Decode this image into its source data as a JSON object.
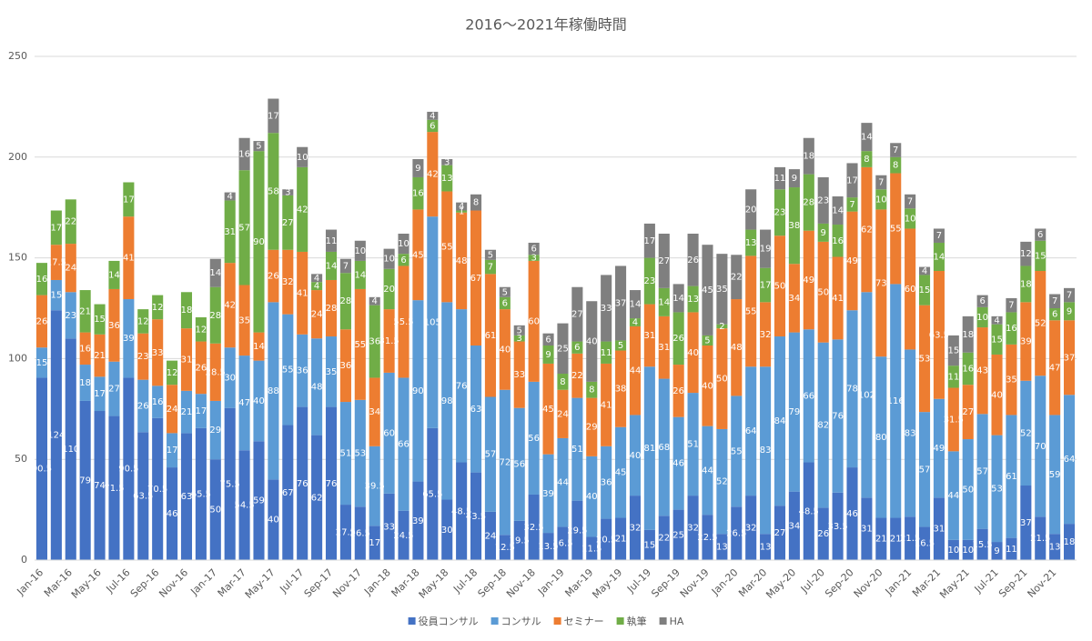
{
  "chart_data": {
    "type": "stacked-bar",
    "title": "2016～2021年稼働時間",
    "categories": [
      "Jan-16",
      null,
      "Mar-16",
      null,
      "May-16",
      null,
      "Jul-16",
      null,
      "Sep-16",
      null,
      "Nov-16",
      null,
      "Jan-17",
      null,
      "Mar-17",
      null,
      "May-17",
      null,
      "Jul-17",
      null,
      "Sep-17",
      null,
      "Nov-17",
      null,
      "Jan-18",
      null,
      "Mar-18",
      null,
      "May-18",
      null,
      "Jul-18",
      null,
      "Sep-18",
      null,
      "Nov-18",
      null,
      "Jan-19",
      null,
      "Mar-19",
      null,
      "May-19",
      null,
      "Jul-19",
      null,
      "Sep-19",
      null,
      "Nov-19",
      null,
      "Jan-20",
      null,
      "Mar-20",
      null,
      "May-20",
      null,
      "Jul-20",
      null,
      "Sep-20",
      null,
      "Nov-20",
      null,
      "Jan-21",
      null,
      "Mar-21",
      null,
      "May-21",
      null,
      "Jul-21",
      null,
      "Sep-21",
      null,
      "Nov-21",
      null
    ],
    "series": [
      {
        "name": "役員コンサル",
        "color": "#4472c4",
        "values": [
          90.5,
          124,
          110,
          79,
          74,
          71.5,
          90.5,
          63.5,
          70.5,
          46,
          63,
          65.5,
          50,
          75.5,
          54.5,
          59,
          40,
          67,
          76,
          62,
          76,
          27.5,
          26.5,
          17,
          33,
          24.5,
          39,
          65.5,
          30,
          48.5,
          43.5,
          24,
          12.5,
          19.5,
          32.5,
          13.5,
          16.5,
          29.5,
          11.5,
          20.5,
          21,
          32,
          15,
          22,
          25,
          32,
          22.5,
          13,
          26.5,
          32,
          13,
          27,
          34,
          48.5,
          26,
          33.5,
          46,
          31,
          21,
          21,
          21.5,
          16.5,
          31,
          10,
          10,
          15.5,
          9,
          11,
          37,
          21.5,
          13,
          18
        ]
      },
      {
        "name": "コンサル",
        "color": "#5b9bd5",
        "values": [
          15,
          15,
          23,
          18,
          17,
          27,
          39,
          26,
          16,
          17,
          21,
          17,
          29,
          30,
          47,
          40,
          88,
          55,
          36,
          48,
          35,
          51,
          53,
          39.5,
          60,
          66,
          90,
          105,
          98,
          76,
          63,
          57,
          72,
          56,
          56,
          39,
          44,
          51,
          40,
          36,
          45,
          40,
          81,
          68,
          46,
          51,
          44,
          52,
          55,
          64,
          83,
          84,
          79,
          66,
          82,
          76,
          78,
          102,
          80,
          116,
          83,
          57,
          49,
          44,
          50,
          57,
          53,
          61,
          52,
          70,
          59,
          64
        ]
      },
      {
        "name": "セミナー",
        "color": "#ed7d31",
        "values": [
          26,
          17.5,
          24,
          16,
          21,
          36,
          41,
          23,
          33,
          24,
          31,
          26,
          28.5,
          42,
          35,
          14,
          26,
          32,
          41,
          24,
          28,
          36,
          55,
          34,
          31.5,
          55.5,
          45,
          42,
          55,
          48,
          67,
          61,
          40,
          33,
          60,
          45,
          24,
          22,
          29,
          41,
          38,
          44,
          31,
          31,
          26,
          40,
          40,
          50,
          48,
          55,
          32,
          50,
          34,
          49,
          50,
          41,
          49,
          62,
          73,
          55,
          60,
          53,
          63.5,
          31.5,
          27,
          43,
          40,
          35,
          39,
          52,
          47,
          37
        ]
      },
      {
        "name": "執筆",
        "color": "#70ad47",
        "values": [
          16,
          17,
          22,
          21,
          15,
          14,
          17,
          12,
          12,
          12,
          18,
          12,
          28,
          31,
          57,
          90,
          58,
          27,
          42,
          4,
          14,
          28,
          14,
          36,
          20,
          6,
          16,
          6,
          13,
          1,
          null,
          7,
          6,
          3,
          3,
          9,
          8,
          6,
          8,
          11,
          5,
          4,
          23,
          14,
          26,
          13,
          5,
          2,
          null,
          13,
          17,
          23,
          38,
          28,
          9,
          16,
          7,
          8,
          10,
          8,
          10,
          15,
          14,
          11,
          16,
          10,
          15,
          16,
          18,
          15,
          6,
          9
        ]
      },
      {
        "name": "HA",
        "color": "#7f7f7f",
        "values": [
          null,
          null,
          null,
          null,
          null,
          null,
          null,
          null,
          null,
          null,
          null,
          null,
          14,
          4,
          16,
          5,
          17,
          3,
          10,
          4,
          11,
          7,
          10,
          4,
          10,
          10,
          9,
          4,
          3,
          4,
          8,
          5,
          5,
          5,
          6,
          6,
          25,
          27,
          40,
          33,
          37,
          14,
          17,
          27,
          14,
          26,
          45,
          35,
          22,
          20,
          19,
          11,
          9,
          18,
          23,
          14,
          17,
          14,
          7,
          7,
          7,
          4,
          7,
          15,
          18,
          6,
          4,
          7,
          12,
          6,
          7,
          7
        ]
      }
    ],
    "ylim": [
      0,
      250
    ],
    "yticks": [
      0,
      50,
      100,
      150,
      200,
      250
    ],
    "grid": true,
    "legend": "bottom"
  }
}
